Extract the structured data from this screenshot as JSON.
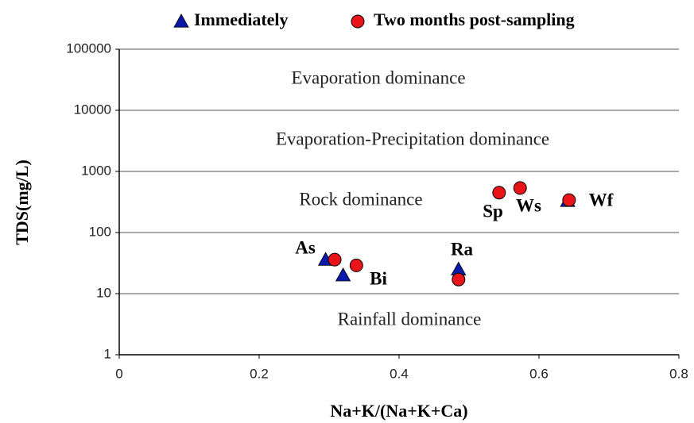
{
  "chart_data": {
    "type": "scatter",
    "x_label": "Na+K/(Na+K+Ca)",
    "y_label": "TDS(mg/L)",
    "xlim": [
      0,
      0.8
    ],
    "xticks": [
      0,
      0.2,
      0.4,
      0.6,
      0.8
    ],
    "ylim": [
      1,
      100000
    ],
    "yticks": [
      1,
      10,
      100,
      1000,
      10000,
      100000
    ],
    "log_y": true,
    "grid": true,
    "legend": "top",
    "series": [
      {
        "name": "Immediately",
        "color": "#0a1aa8",
        "marker": "triangle",
        "x": [
          0.295,
          0.32,
          0.485,
          0.641
        ],
        "values": [
          36,
          20,
          25,
          330
        ]
      },
      {
        "name": "Two months post-sampling",
        "color": "#e8141a",
        "marker": "circle",
        "x": [
          0.308,
          0.339,
          0.485,
          0.543,
          0.573,
          0.643
        ],
        "values": [
          36,
          29,
          17,
          450,
          535,
          340
        ]
      }
    ],
    "region_labels": [
      "Evaporation dominance",
      "Evaporation-Precipitation  dominance",
      "Rock dominance",
      "Rainfall  dominance"
    ],
    "annotations": [
      "As",
      "Bi",
      "Ra",
      "Sp",
      "Ws",
      "Wf"
    ]
  }
}
